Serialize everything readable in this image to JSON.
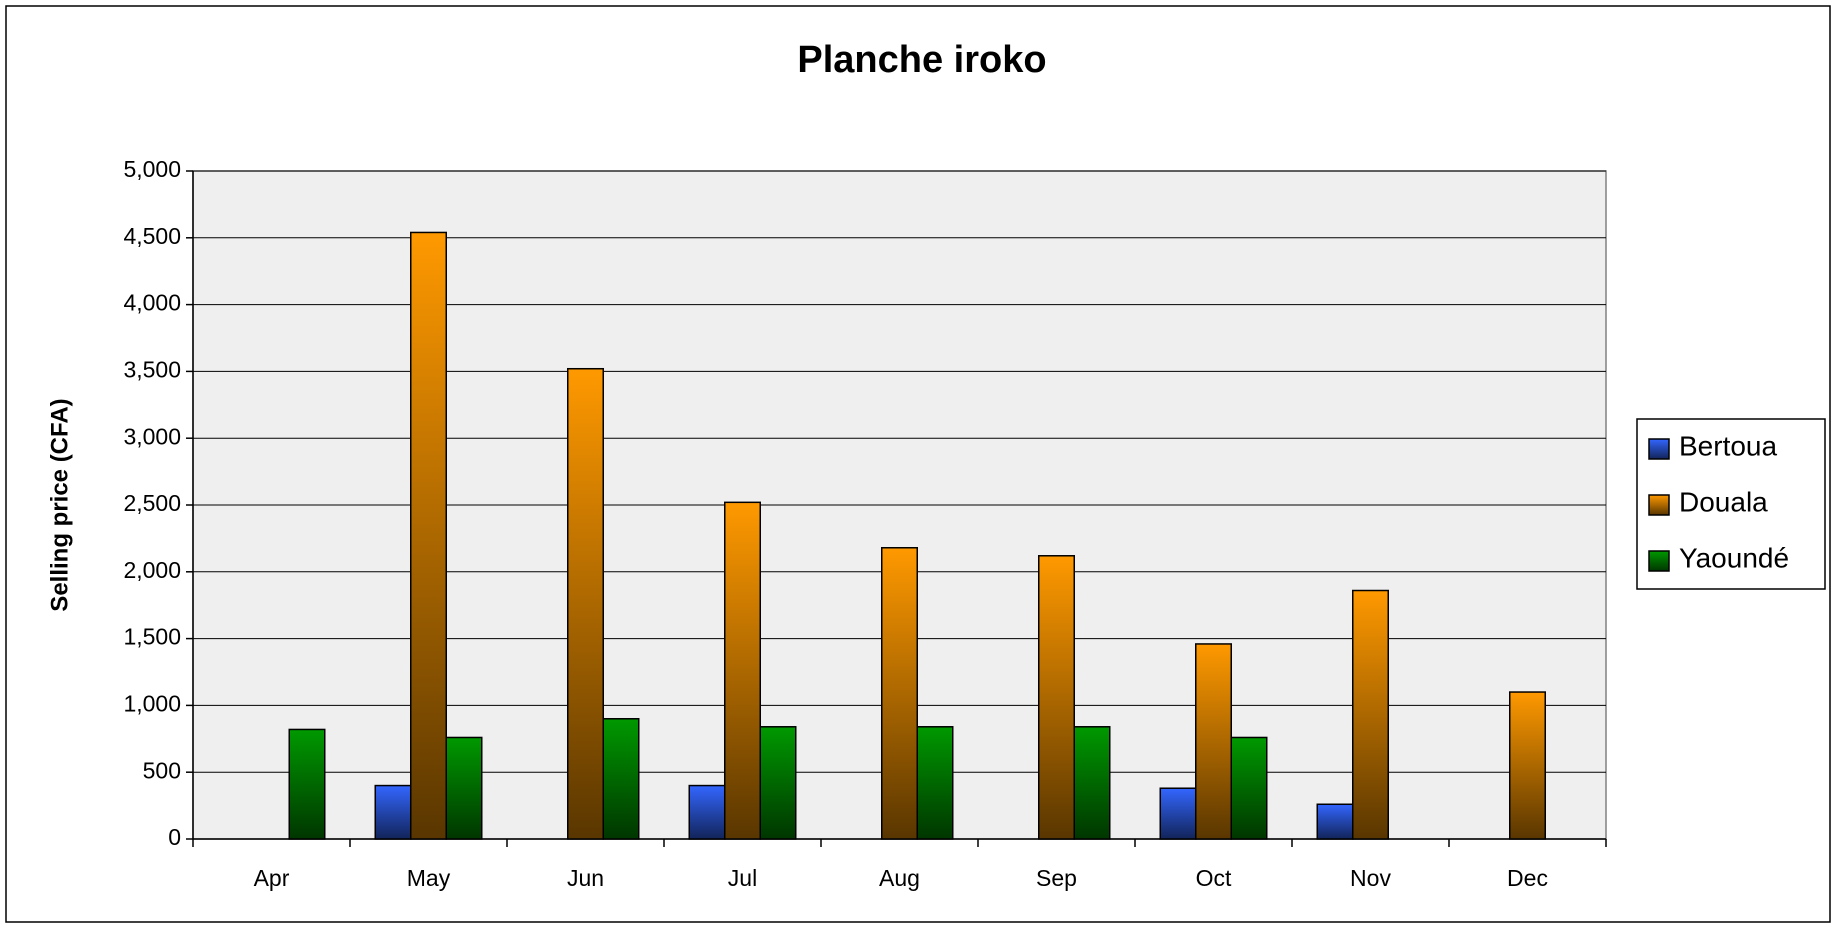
{
  "chart_data": {
    "type": "bar",
    "title": "Planche iroko",
    "y_label": "Selling price (CFA)",
    "categories": [
      "Apr",
      "May",
      "Jun",
      "Jul",
      "Aug",
      "Sep",
      "Oct",
      "Nov",
      "Dec"
    ],
    "series": [
      {
        "name": "Bertoua",
        "color": "#3366ff",
        "values": [
          null,
          400,
          null,
          400,
          null,
          null,
          380,
          260,
          null
        ]
      },
      {
        "name": "Douala",
        "color": "#ff9900",
        "values": [
          null,
          4540,
          3520,
          2520,
          2180,
          2120,
          1460,
          1860,
          1100
        ]
      },
      {
        "name": "Yaoundé",
        "color": "#009900",
        "values": [
          820,
          760,
          900,
          840,
          840,
          840,
          760,
          null,
          null
        ]
      }
    ],
    "ylim": [
      0,
      5000
    ],
    "yticks": [
      0,
      500,
      {
        "value": 1000,
        "label": "1,000"
      },
      {
        "value": 1500,
        "label": "1,500"
      },
      {
        "value": 2000,
        "label": "2,000"
      },
      {
        "value": 2500,
        "label": "2,500"
      },
      {
        "value": 3000,
        "label": "3,000"
      },
      {
        "value": 3500,
        "label": "3,500"
      },
      {
        "value": 4000,
        "label": "4,000"
      },
      {
        "value": 4500,
        "label": "4,500"
      },
      {
        "value": 5000,
        "label": "5,000"
      }
    ],
    "grid": true,
    "legend": "right"
  }
}
